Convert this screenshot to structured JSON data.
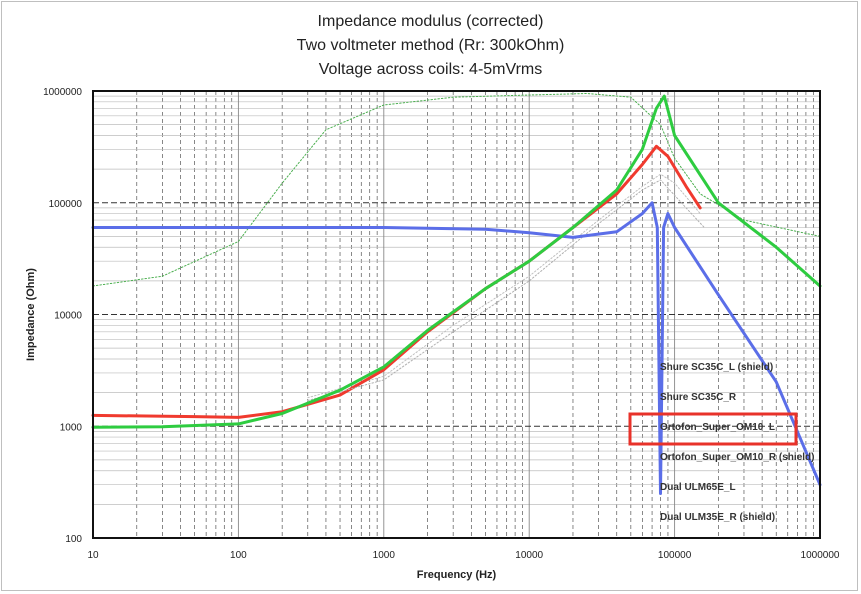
{
  "chart_data": {
    "type": "line",
    "title": [
      "Impedance modulus (corrected)",
      "Two voltmeter method (Rr: 300kOhm)",
      "Voltage across coils: 4-5mVrms"
    ],
    "xlabel": "Frequency (Hz)",
    "ylabel": "Impedance (Ohm)",
    "xscale": "log",
    "yscale": "log",
    "xlim": [
      10,
      1000000
    ],
    "ylim": [
      100,
      1000000
    ],
    "x_ticks": [
      "10",
      "100",
      "1000",
      "10000",
      "100000",
      "1000000"
    ],
    "y_ticks": [
      "100",
      "1000",
      "10000",
      "100000",
      "1000000"
    ],
    "grid": true,
    "legend_position": "lower-right inside plot",
    "highlighted_legend_entry": "Ortofon_Super_OM10_L",
    "highlight_color": "#e8322a",
    "series": [
      {
        "name": "Shure SC35C_L (shield)",
        "color": "#4caf50",
        "style": "dotted",
        "x": [
          10,
          30,
          100,
          200,
          400,
          1000,
          3000,
          10000,
          25000,
          50000,
          80000,
          100000,
          150000,
          300000,
          1000000
        ],
        "y": [
          18000,
          22000,
          45000,
          150000,
          450000,
          750000,
          880000,
          920000,
          950000,
          880000,
          500000,
          250000,
          120000,
          70000,
          50000
        ]
      },
      {
        "name": "Shure SC35C_R",
        "color": "#c0c0c0",
        "style": "dotted",
        "x": [
          300,
          1000,
          3000,
          10000,
          30000,
          60000,
          80000,
          100000,
          150000
        ],
        "y": [
          1800,
          2800,
          8000,
          22000,
          70000,
          140000,
          180000,
          150000,
          80000
        ]
      },
      {
        "name": "Ortofon_Super_OM10_L",
        "color": "#f03a2e",
        "style": "solid",
        "x": [
          10,
          50,
          100,
          200,
          500,
          1000,
          2000,
          5000,
          10000,
          20000,
          40000,
          60000,
          75000,
          90000,
          120000,
          150000
        ],
        "y": [
          1250,
          1220,
          1200,
          1350,
          1900,
          3200,
          7000,
          17000,
          30000,
          60000,
          120000,
          220000,
          320000,
          260000,
          140000,
          90000
        ]
      },
      {
        "name": "Ortofon_Super_OM10_R (shield)",
        "color": "#b0b0b0",
        "style": "dotted",
        "x": [
          300,
          1000,
          3000,
          10000,
          30000,
          60000,
          80000,
          120000,
          160000
        ],
        "y": [
          1700,
          2600,
          7000,
          20000,
          65000,
          130000,
          160000,
          90000,
          60000
        ]
      },
      {
        "name": "Dual ULM65E_L",
        "color": "#5b6ee8",
        "style": "solid",
        "x": [
          10,
          100,
          1000,
          5000,
          10000,
          20000,
          40000,
          60000,
          70000,
          76000,
          80000,
          84000,
          90000,
          100000,
          200000,
          500000,
          1000000
        ],
        "y": [
          60000,
          60000,
          60000,
          58000,
          54000,
          49000,
          55000,
          80000,
          100000,
          60000,
          250,
          60000,
          80000,
          60000,
          15000,
          2500,
          300
        ]
      },
      {
        "name": "Dual ULM35E_R (shield)",
        "color": "#2ecc40",
        "style": "solid",
        "x": [
          10,
          30,
          100,
          200,
          500,
          1000,
          2000,
          5000,
          10000,
          20000,
          40000,
          60000,
          75000,
          85000,
          100000,
          200000,
          500000,
          1000000
        ],
        "y": [
          980,
          990,
          1050,
          1300,
          2100,
          3400,
          7200,
          17000,
          30000,
          60000,
          130000,
          300000,
          700000,
          900000,
          400000,
          100000,
          40000,
          18000
        ]
      }
    ]
  }
}
